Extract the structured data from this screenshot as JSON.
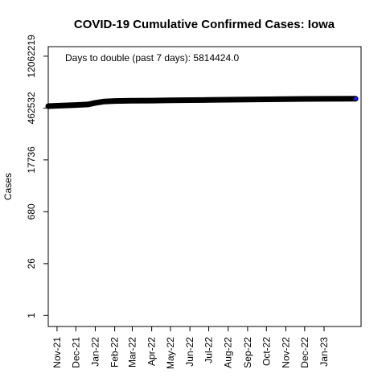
{
  "chart_data": {
    "type": "line",
    "title": "COVID-19 Cumulative Confirmed Cases: Iowa",
    "xlabel": "",
    "ylabel": "Cases",
    "annotation": "Days to double (past 7 days): 5814424.0",
    "y_scale": "log",
    "ylim": [
      0.5,
      22000000
    ],
    "y_ticks": [
      {
        "value": 1,
        "label": "1"
      },
      {
        "value": 26,
        "label": "26"
      },
      {
        "value": 680,
        "label": "680"
      },
      {
        "value": 17736,
        "label": "17736"
      },
      {
        "value": 462532,
        "label": "462532"
      },
      {
        "value": 12062219,
        "label": "12062219"
      }
    ],
    "xlim": [
      "2021-10-18",
      "2023-03-01"
    ],
    "x_ticks": [
      {
        "value": "2021-11-01",
        "label": "Nov-21"
      },
      {
        "value": "2021-12-01",
        "label": "Dec-21"
      },
      {
        "value": "2022-01-01",
        "label": "Jan-22"
      },
      {
        "value": "2022-02-01",
        "label": "Feb-22"
      },
      {
        "value": "2022-03-01",
        "label": "Mar-22"
      },
      {
        "value": "2022-04-01",
        "label": "Apr-22"
      },
      {
        "value": "2022-05-01",
        "label": "May-22"
      },
      {
        "value": "2022-06-01",
        "label": "Jun-22"
      },
      {
        "value": "2022-07-01",
        "label": "Jul-22"
      },
      {
        "value": "2022-08-01",
        "label": "Aug-22"
      },
      {
        "value": "2022-09-01",
        "label": "Sep-22"
      },
      {
        "value": "2022-10-01",
        "label": "Oct-22"
      },
      {
        "value": "2022-11-01",
        "label": "Nov-22"
      },
      {
        "value": "2022-12-01",
        "label": "Dec-22"
      },
      {
        "value": "2023-01-01",
        "label": "Jan-23"
      }
    ],
    "series": [
      {
        "color": "#000000",
        "end_marker_color": "#1a1aff",
        "x": [
          "2021-10-18",
          "2021-11-01",
          "2021-12-01",
          "2021-12-20",
          "2022-01-01",
          "2022-01-15",
          "2022-02-01",
          "2022-03-01",
          "2022-04-01",
          "2022-05-01",
          "2022-06-01",
          "2022-07-01",
          "2022-08-01",
          "2022-09-01",
          "2022-10-01",
          "2022-11-01",
          "2022-12-01",
          "2023-01-01",
          "2023-02-20"
        ],
        "y": [
          520000,
          535000,
          560000,
          580000,
          640000,
          700000,
          720000,
          730000,
          740000,
          750000,
          760000,
          770000,
          780000,
          790000,
          800000,
          810000,
          820000,
          825000,
          830000
        ]
      }
    ]
  }
}
